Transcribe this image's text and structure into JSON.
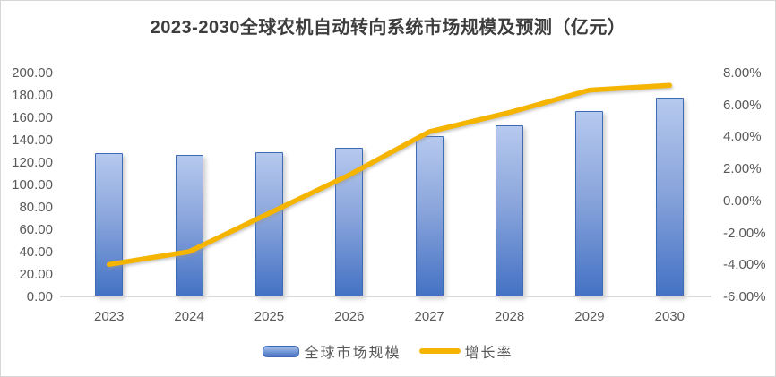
{
  "title": "2023-2030全球农机自动转向系统市场规模及预测（亿元）",
  "legend": {
    "market_label": "全球市场规模",
    "growth_label": "增长率"
  },
  "chart_data": {
    "type": "combo-bar-line",
    "title": "2023-2030全球农机自动转向系统市场规模及预测（亿元）",
    "categories": [
      "2023",
      "2024",
      "2025",
      "2026",
      "2027",
      "2028",
      "2029",
      "2030"
    ],
    "series": [
      {
        "name": "全球市场规模",
        "type": "bar",
        "axis": "left",
        "unit": "亿元",
        "values": [
          128,
          126.5,
          129,
          133,
          143,
          153,
          165.5,
          178
        ]
      },
      {
        "name": "增长率",
        "type": "line",
        "axis": "right",
        "unit": "%",
        "values": [
          -4.0,
          -3.2,
          -0.8,
          1.6,
          4.3,
          5.5,
          6.9,
          7.2
        ]
      }
    ],
    "left_axis": {
      "min": 0,
      "max": 200,
      "step": 20,
      "ticks": [
        "200.00",
        "180.00",
        "160.00",
        "140.00",
        "120.00",
        "100.00",
        "80.00",
        "60.00",
        "40.00",
        "20.00",
        "0.00"
      ]
    },
    "right_axis": {
      "min": -6,
      "max": 8,
      "step": 2,
      "ticks": [
        "8.00%",
        "6.00%",
        "4.00%",
        "2.00%",
        "0.00%",
        "-2.00%",
        "-4.00%",
        "-6.00%"
      ]
    },
    "grid": "off",
    "legend_position": "bottom",
    "colors": {
      "bar_top": "#b6c9ee",
      "bar_bottom": "#4472c4",
      "bar_border": "#3f6ab5",
      "line": "#f5b400",
      "tick_text": "#595959",
      "title_text": "#3d3d3d"
    }
  }
}
